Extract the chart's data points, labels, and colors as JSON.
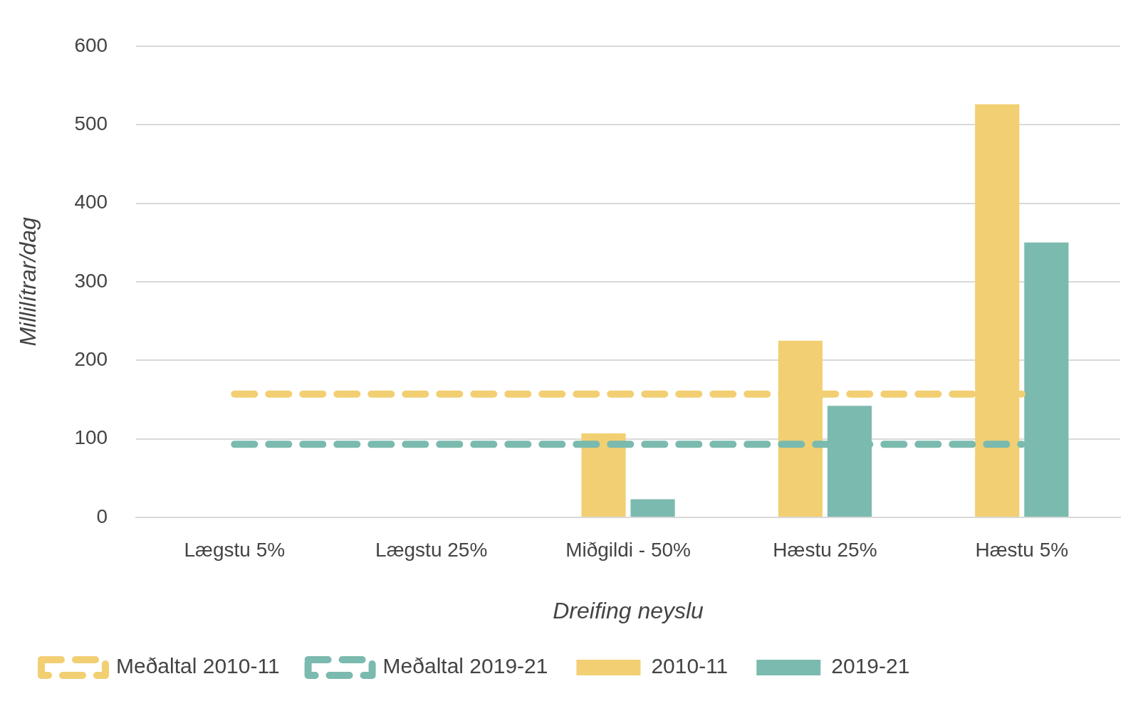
{
  "chart_data": {
    "type": "bar",
    "xlabel": "Dreifing neyslu",
    "ylabel": "Millilítrar/dag",
    "categories": [
      "Lægstu 5%",
      "Lægstu 25%",
      "Miðgildi - 50%",
      "Hæstu 25%",
      "Hæstu 5%"
    ],
    "series": [
      {
        "name": "2010-11",
        "color": "#f2cf73",
        "values": [
          0,
          0,
          107,
          225,
          526
        ]
      },
      {
        "name": "2019-21",
        "color": "#7bbaae",
        "values": [
          0,
          0,
          23,
          142,
          350
        ]
      },
      {
        "name": "Meðaltal 2010-11",
        "type": "line",
        "line_style": "dashed",
        "color": "#f2cf73",
        "values": [
          157,
          157,
          157,
          157,
          157
        ]
      },
      {
        "name": "Meðaltal 2019-21",
        "type": "line",
        "line_style": "dashed",
        "color": "#7bbaae",
        "values": [
          93,
          93,
          93,
          93,
          93
        ]
      }
    ],
    "ylim": [
      0,
      600
    ],
    "yticks": [
      0,
      100,
      200,
      300,
      400,
      500,
      600
    ],
    "grid": "y",
    "legend": "bottom",
    "marker": "none"
  }
}
